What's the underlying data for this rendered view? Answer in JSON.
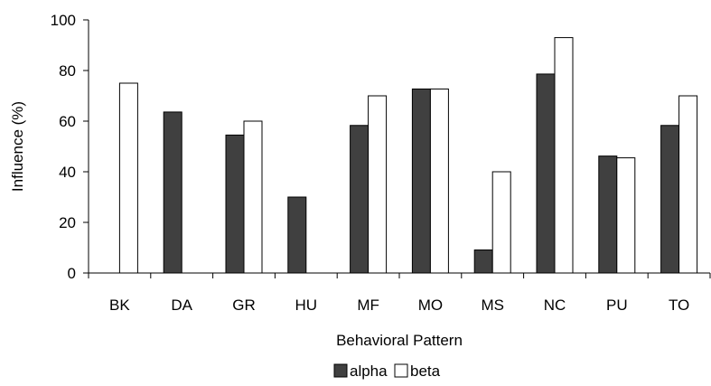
{
  "chart_data": {
    "type": "bar",
    "xlabel": "Behavioral Pattern",
    "ylabel": "Influence (%)",
    "ylim": [
      0,
      100
    ],
    "yticks": [
      0,
      20,
      40,
      60,
      80,
      100
    ],
    "grid": false,
    "legend_position": "bottom",
    "categories": [
      "BK",
      "DA",
      "GR",
      "HU",
      "MF",
      "MO",
      "MS",
      "NC",
      "PU",
      "TO"
    ],
    "series": [
      {
        "name": "alpha",
        "color": "#404040",
        "values": [
          0,
          63.6,
          54.5,
          30,
          58.3,
          72.7,
          9.1,
          78.6,
          46.2,
          58.3
        ]
      },
      {
        "name": "beta",
        "color": "#ffffff",
        "values": [
          75,
          0,
          60,
          0,
          70,
          72.7,
          40,
          93,
          45.5,
          70
        ]
      }
    ]
  }
}
